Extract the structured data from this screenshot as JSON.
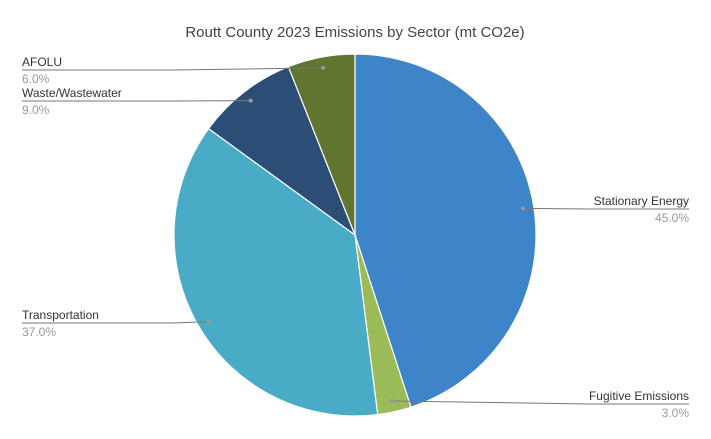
{
  "chart_data": {
    "type": "pie",
    "title": "Routt County 2023 Emissions by Sector (mt CO2e)",
    "start_angle_deg": 0,
    "direction": "clockwise",
    "legend": "none",
    "slices": [
      {
        "label": "Stationary Energy",
        "value": 45.0,
        "display": "45.0%",
        "color": "#3e84c8"
      },
      {
        "label": "Fugitive Emissions",
        "value": 3.0,
        "display": "3.0%",
        "color": "#9bbb59"
      },
      {
        "label": "Transportation",
        "value": 37.0,
        "display": "37.0%",
        "color": "#4aabc6"
      },
      {
        "label": "Waste/Wastewater",
        "value": 9.0,
        "display": "9.0%",
        "color": "#2c4d75"
      },
      {
        "label": "AFOLU",
        "value": 6.0,
        "display": "6.0%",
        "color": "#5f7530"
      }
    ]
  }
}
